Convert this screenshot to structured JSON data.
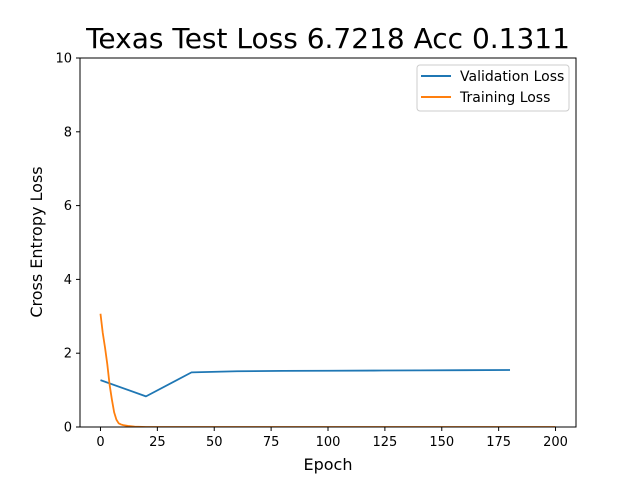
{
  "chart_data": {
    "type": "line",
    "title": "Texas Test Loss 6.7218 Acc 0.1311",
    "xlabel": "Epoch",
    "ylabel": "Cross Entropy Loss",
    "xlim": [
      -9,
      209
    ],
    "ylim": [
      0,
      10
    ],
    "xticks": [
      0,
      25,
      50,
      75,
      100,
      125,
      150,
      175,
      200
    ],
    "yticks": [
      0,
      2,
      4,
      6,
      8,
      10
    ],
    "grid": false,
    "legend_position": "top-right",
    "series": [
      {
        "name": "Validation Loss",
        "color": "#1f77b4",
        "x": [
          0,
          20,
          40,
          60,
          80,
          100,
          120,
          140,
          160,
          180
        ],
        "y": [
          1.27,
          0.83,
          1.48,
          1.51,
          1.52,
          1.525,
          1.53,
          1.535,
          1.54,
          1.545
        ]
      },
      {
        "name": "Training Loss",
        "color": "#ff7f0e",
        "x": [
          0,
          1,
          2,
          3,
          4,
          5,
          6,
          7,
          8,
          9,
          10,
          12,
          15,
          20,
          30,
          50,
          100,
          150,
          200
        ],
        "y": [
          3.07,
          2.55,
          2.15,
          1.7,
          1.15,
          0.75,
          0.4,
          0.2,
          0.1,
          0.07,
          0.05,
          0.03,
          0.01,
          0.0,
          0.0,
          0.0,
          0.0,
          0.0,
          0.0
        ]
      }
    ]
  }
}
